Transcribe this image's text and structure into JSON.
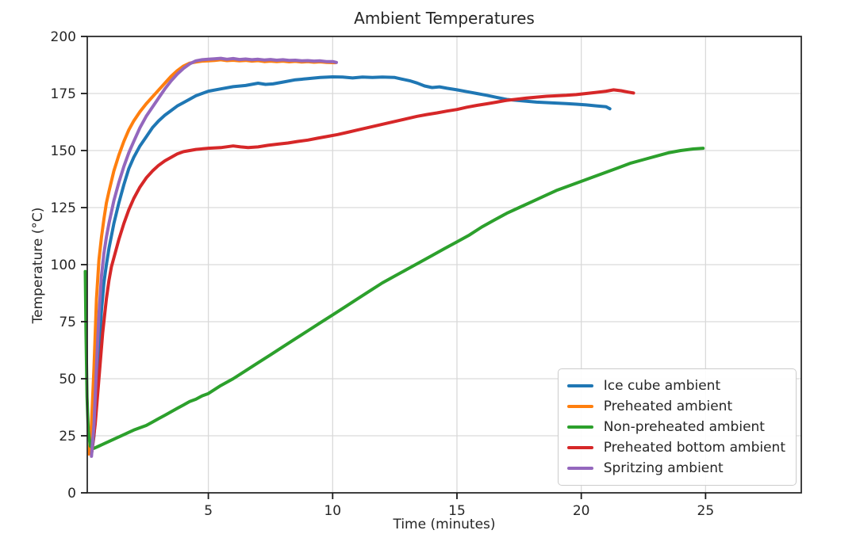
{
  "figure": {
    "title": "Ambient Temperatures",
    "xlabel": "Time (minutes)",
    "ylabel": "Temperature (°C)"
  },
  "chart_data": {
    "type": "line",
    "title": "Ambient Temperatures",
    "xlabel": "Time (minutes)",
    "ylabel": "Temperature (°C)",
    "xlim": [
      0.13,
      28.85
    ],
    "ylim": [
      0,
      200
    ],
    "x_ticks": [
      5,
      10,
      15,
      20,
      25
    ],
    "y_ticks": [
      0,
      25,
      50,
      75,
      100,
      125,
      150,
      175,
      200
    ],
    "grid": true,
    "grid_color": "#d9d9d9",
    "spine_color": "#2b2b2b",
    "legend_position": "lower right",
    "series": [
      {
        "name": "Ice cube ambient",
        "color": "#1f77b4",
        "points": [
          [
            0.3,
            17
          ],
          [
            0.4,
            25
          ],
          [
            0.5,
            42
          ],
          [
            0.6,
            62
          ],
          [
            0.7,
            80
          ],
          [
            0.8,
            92
          ],
          [
            0.9,
            100
          ],
          [
            1.0,
            107
          ],
          [
            1.2,
            118
          ],
          [
            1.4,
            127
          ],
          [
            1.6,
            135
          ],
          [
            1.8,
            142
          ],
          [
            2.0,
            147
          ],
          [
            2.25,
            152
          ],
          [
            2.5,
            156
          ],
          [
            2.75,
            160
          ],
          [
            3.0,
            163
          ],
          [
            3.25,
            165.5
          ],
          [
            3.5,
            167.5
          ],
          [
            3.75,
            169.5
          ],
          [
            4.0,
            171
          ],
          [
            4.5,
            174
          ],
          [
            5.0,
            176
          ],
          [
            5.5,
            177
          ],
          [
            6.0,
            178
          ],
          [
            6.5,
            178.5
          ],
          [
            7.0,
            179.5
          ],
          [
            7.3,
            179
          ],
          [
            7.6,
            179.2
          ],
          [
            8.0,
            180
          ],
          [
            8.5,
            181
          ],
          [
            9.0,
            181.5
          ],
          [
            9.5,
            182
          ],
          [
            10.0,
            182.3
          ],
          [
            10.4,
            182.2
          ],
          [
            10.8,
            181.8
          ],
          [
            11.2,
            182.2
          ],
          [
            11.6,
            182.0
          ],
          [
            12.0,
            182.2
          ],
          [
            12.5,
            182.0
          ],
          [
            12.8,
            181.3
          ],
          [
            13.1,
            180.6
          ],
          [
            13.4,
            179.6
          ],
          [
            13.7,
            178.3
          ],
          [
            14.0,
            177.6
          ],
          [
            14.3,
            177.9
          ],
          [
            14.6,
            177.3
          ],
          [
            15.0,
            176.6
          ],
          [
            15.4,
            175.8
          ],
          [
            15.8,
            175.0
          ],
          [
            16.2,
            174.2
          ],
          [
            16.6,
            173.3
          ],
          [
            17.0,
            172.4
          ],
          [
            17.4,
            172.0
          ],
          [
            17.8,
            171.6
          ],
          [
            18.2,
            171.2
          ],
          [
            18.6,
            171.0
          ],
          [
            19.0,
            170.8
          ],
          [
            19.4,
            170.6
          ],
          [
            19.8,
            170.3
          ],
          [
            20.2,
            170.0
          ],
          [
            20.6,
            169.6
          ],
          [
            21.0,
            169.2
          ],
          [
            21.15,
            168.3
          ]
        ]
      },
      {
        "name": "Preheated ambient",
        "color": "#ff7f0e",
        "points": [
          [
            0.2,
            17
          ],
          [
            0.3,
            30
          ],
          [
            0.4,
            55
          ],
          [
            0.5,
            85
          ],
          [
            0.6,
            102
          ],
          [
            0.7,
            112
          ],
          [
            0.8,
            120
          ],
          [
            0.9,
            127
          ],
          [
            1.0,
            132
          ],
          [
            1.2,
            141
          ],
          [
            1.4,
            148
          ],
          [
            1.6,
            154
          ],
          [
            1.8,
            159
          ],
          [
            2.0,
            163
          ],
          [
            2.25,
            167
          ],
          [
            2.5,
            170.5
          ],
          [
            2.75,
            173.5
          ],
          [
            3.0,
            176.5
          ],
          [
            3.25,
            179.5
          ],
          [
            3.5,
            182.5
          ],
          [
            3.75,
            185
          ],
          [
            4.0,
            187
          ],
          [
            4.25,
            188.3
          ],
          [
            4.5,
            188.8
          ],
          [
            4.75,
            189.2
          ],
          [
            5.0,
            189.3
          ],
          [
            5.25,
            189.5
          ],
          [
            5.5,
            189.8
          ],
          [
            5.75,
            189.4
          ],
          [
            6.0,
            189.6
          ],
          [
            6.25,
            189.3
          ],
          [
            6.5,
            189.5
          ],
          [
            6.75,
            189.2
          ],
          [
            7.0,
            189.4
          ],
          [
            7.25,
            189.0
          ],
          [
            7.5,
            189.2
          ],
          [
            7.75,
            189.0
          ],
          [
            8.0,
            189.2
          ],
          [
            8.25,
            188.9
          ],
          [
            8.5,
            189.1
          ],
          [
            8.75,
            188.8
          ],
          [
            9.0,
            189.0
          ],
          [
            9.25,
            188.7
          ],
          [
            9.5,
            188.9
          ],
          [
            9.75,
            188.6
          ],
          [
            10.1,
            188.5
          ]
        ]
      },
      {
        "name": "Non-preheated ambient",
        "color": "#2ca02c",
        "points": [
          [
            0.05,
            97
          ],
          [
            0.08,
            70
          ],
          [
            0.12,
            42
          ],
          [
            0.17,
            27
          ],
          [
            0.25,
            20.5
          ],
          [
            0.4,
            19.5
          ],
          [
            0.6,
            20.5
          ],
          [
            0.8,
            21.5
          ],
          [
            1.0,
            22.5
          ],
          [
            1.2,
            23.5
          ],
          [
            1.4,
            24.5
          ],
          [
            1.6,
            25.5
          ],
          [
            1.8,
            26.5
          ],
          [
            2.0,
            27.5
          ],
          [
            2.25,
            28.5
          ],
          [
            2.5,
            29.5
          ],
          [
            2.75,
            31
          ],
          [
            3.0,
            32.5
          ],
          [
            3.25,
            34
          ],
          [
            3.5,
            35.5
          ],
          [
            3.75,
            37
          ],
          [
            4.0,
            38.5
          ],
          [
            4.25,
            40
          ],
          [
            4.5,
            41
          ],
          [
            4.75,
            42.5
          ],
          [
            5.0,
            43.5
          ],
          [
            5.5,
            47
          ],
          [
            6.0,
            50
          ],
          [
            6.5,
            53.5
          ],
          [
            7.0,
            57
          ],
          [
            7.5,
            60.5
          ],
          [
            8.0,
            64
          ],
          [
            8.5,
            67.5
          ],
          [
            9.0,
            71
          ],
          [
            9.5,
            74.5
          ],
          [
            10.0,
            78
          ],
          [
            10.5,
            81.5
          ],
          [
            11.0,
            85
          ],
          [
            11.5,
            88.5
          ],
          [
            12.0,
            92
          ],
          [
            12.5,
            95
          ],
          [
            13.0,
            98
          ],
          [
            13.5,
            101
          ],
          [
            14.0,
            104
          ],
          [
            14.5,
            107
          ],
          [
            15.0,
            110
          ],
          [
            15.5,
            113
          ],
          [
            16.0,
            116.5
          ],
          [
            16.5,
            119.5
          ],
          [
            17.0,
            122.5
          ],
          [
            17.5,
            125
          ],
          [
            18.0,
            127.5
          ],
          [
            18.5,
            130
          ],
          [
            19.0,
            132.5
          ],
          [
            19.5,
            134.5
          ],
          [
            20.0,
            136.5
          ],
          [
            20.5,
            138.5
          ],
          [
            21.0,
            140.5
          ],
          [
            21.5,
            142.5
          ],
          [
            22.0,
            144.5
          ],
          [
            22.5,
            146
          ],
          [
            23.0,
            147.5
          ],
          [
            23.5,
            149
          ],
          [
            24.0,
            150
          ],
          [
            24.5,
            150.7
          ],
          [
            24.9,
            151
          ]
        ]
      },
      {
        "name": "Preheated bottom ambient",
        "color": "#d62728",
        "points": [
          [
            0.3,
            17
          ],
          [
            0.45,
            30
          ],
          [
            0.6,
            50
          ],
          [
            0.75,
            70
          ],
          [
            0.9,
            85
          ],
          [
            1.0,
            93
          ],
          [
            1.1,
            99
          ],
          [
            1.25,
            105
          ],
          [
            1.4,
            111
          ],
          [
            1.6,
            118
          ],
          [
            1.8,
            124
          ],
          [
            2.0,
            129
          ],
          [
            2.25,
            134
          ],
          [
            2.5,
            138
          ],
          [
            2.75,
            141
          ],
          [
            3.0,
            143.5
          ],
          [
            3.25,
            145.5
          ],
          [
            3.5,
            147
          ],
          [
            3.75,
            148.5
          ],
          [
            4.0,
            149.5
          ],
          [
            4.25,
            150
          ],
          [
            4.5,
            150.5
          ],
          [
            5.0,
            151
          ],
          [
            5.5,
            151.3
          ],
          [
            6.0,
            152
          ],
          [
            6.3,
            151.6
          ],
          [
            6.6,
            151.3
          ],
          [
            7.0,
            151.6
          ],
          [
            7.4,
            152.3
          ],
          [
            7.8,
            152.8
          ],
          [
            8.2,
            153.3
          ],
          [
            8.6,
            154
          ],
          [
            9.0,
            154.6
          ],
          [
            9.4,
            155.4
          ],
          [
            9.8,
            156.2
          ],
          [
            10.2,
            157
          ],
          [
            10.6,
            158
          ],
          [
            11.0,
            159
          ],
          [
            11.4,
            160
          ],
          [
            11.8,
            161
          ],
          [
            12.2,
            162
          ],
          [
            12.6,
            163
          ],
          [
            13.0,
            164
          ],
          [
            13.4,
            165
          ],
          [
            13.8,
            165.8
          ],
          [
            14.2,
            166.5
          ],
          [
            14.6,
            167.3
          ],
          [
            15.0,
            168
          ],
          [
            15.4,
            169
          ],
          [
            15.8,
            169.8
          ],
          [
            16.2,
            170.5
          ],
          [
            16.6,
            171.2
          ],
          [
            17.0,
            172
          ],
          [
            17.4,
            172.5
          ],
          [
            17.8,
            173
          ],
          [
            18.2,
            173.4
          ],
          [
            18.6,
            173.8
          ],
          [
            19.0,
            174
          ],
          [
            19.4,
            174.2
          ],
          [
            19.8,
            174.5
          ],
          [
            20.2,
            175
          ],
          [
            20.6,
            175.5
          ],
          [
            21.0,
            176
          ],
          [
            21.3,
            176.6
          ],
          [
            21.6,
            176.2
          ],
          [
            21.9,
            175.6
          ],
          [
            22.1,
            175.2
          ]
        ]
      },
      {
        "name": "Spritzing ambient",
        "color": "#9467bd",
        "points": [
          [
            0.3,
            16
          ],
          [
            0.4,
            30
          ],
          [
            0.5,
            55
          ],
          [
            0.6,
            78
          ],
          [
            0.7,
            95
          ],
          [
            0.8,
            105
          ],
          [
            0.9,
            112
          ],
          [
            1.0,
            118
          ],
          [
            1.2,
            128
          ],
          [
            1.4,
            136
          ],
          [
            1.6,
            143
          ],
          [
            1.8,
            149
          ],
          [
            2.0,
            154
          ],
          [
            2.25,
            160
          ],
          [
            2.5,
            165
          ],
          [
            2.75,
            169
          ],
          [
            3.0,
            173
          ],
          [
            3.25,
            177
          ],
          [
            3.5,
            180.5
          ],
          [
            3.75,
            183.5
          ],
          [
            4.0,
            186
          ],
          [
            4.25,
            188
          ],
          [
            4.5,
            189.3
          ],
          [
            4.75,
            189.8
          ],
          [
            5.0,
            190
          ],
          [
            5.25,
            190.2
          ],
          [
            5.5,
            190.4
          ],
          [
            5.75,
            190.0
          ],
          [
            6.0,
            190.3
          ],
          [
            6.25,
            189.9
          ],
          [
            6.5,
            190.1
          ],
          [
            6.75,
            189.8
          ],
          [
            7.0,
            190.0
          ],
          [
            7.25,
            189.7
          ],
          [
            7.5,
            189.9
          ],
          [
            7.75,
            189.6
          ],
          [
            8.0,
            189.8
          ],
          [
            8.25,
            189.5
          ],
          [
            8.5,
            189.6
          ],
          [
            8.75,
            189.3
          ],
          [
            9.0,
            189.4
          ],
          [
            9.25,
            189.2
          ],
          [
            9.5,
            189.3
          ],
          [
            9.75,
            189.0
          ],
          [
            10.0,
            189.0
          ],
          [
            10.15,
            188.6
          ]
        ]
      }
    ]
  }
}
